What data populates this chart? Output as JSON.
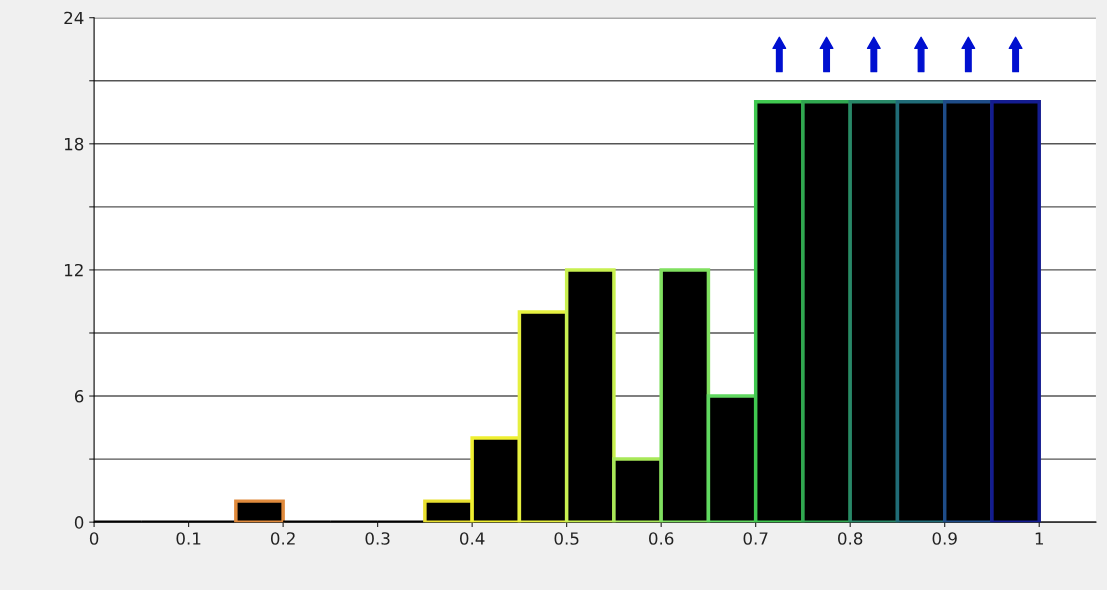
{
  "chart_data": {
    "type": "histogram",
    "bins": [
      0,
      0.05,
      0.1,
      0.15,
      0.2,
      0.25,
      0.3,
      0.35,
      0.4,
      0.45,
      0.5,
      0.55,
      0.6,
      0.65,
      0.7,
      0.75,
      0.8,
      0.85,
      0.9,
      0.95,
      1
    ],
    "values": [
      0,
      0,
      0,
      1,
      0,
      0,
      0,
      1,
      4,
      10,
      12,
      3,
      12,
      6,
      20,
      20,
      20,
      20,
      20,
      20
    ],
    "color": "#000000",
    "colors": [
      "#000000",
      "#000000",
      "#000000",
      "#e08a3c",
      "#000000",
      "#000000",
      "#000000",
      "#e8e030",
      "#f0f030",
      "#e6f040",
      "#c8f050",
      "#a8e858",
      "#80e060",
      "#60d860",
      "#40c850",
      "#30a850",
      "#288868",
      "#206c78",
      "#1e4c88",
      "#141c90"
    ],
    "xlim": [
      0,
      1.06
    ],
    "xticks": [
      0,
      0.1,
      0.2,
      0.3,
      0.4,
      0.5,
      0.6,
      0.7,
      0.8,
      0.9,
      1
    ],
    "ylim": [
      0,
      24
    ],
    "yticks": [
      0,
      {
        "value": 3,
        "label": null
      },
      6,
      {
        "value": 9,
        "label": null
      },
      12,
      {
        "value": 15,
        "label": null
      },
      18,
      {
        "value": 21,
        "label": null
      },
      24
    ],
    "grid": "y"
  }
}
